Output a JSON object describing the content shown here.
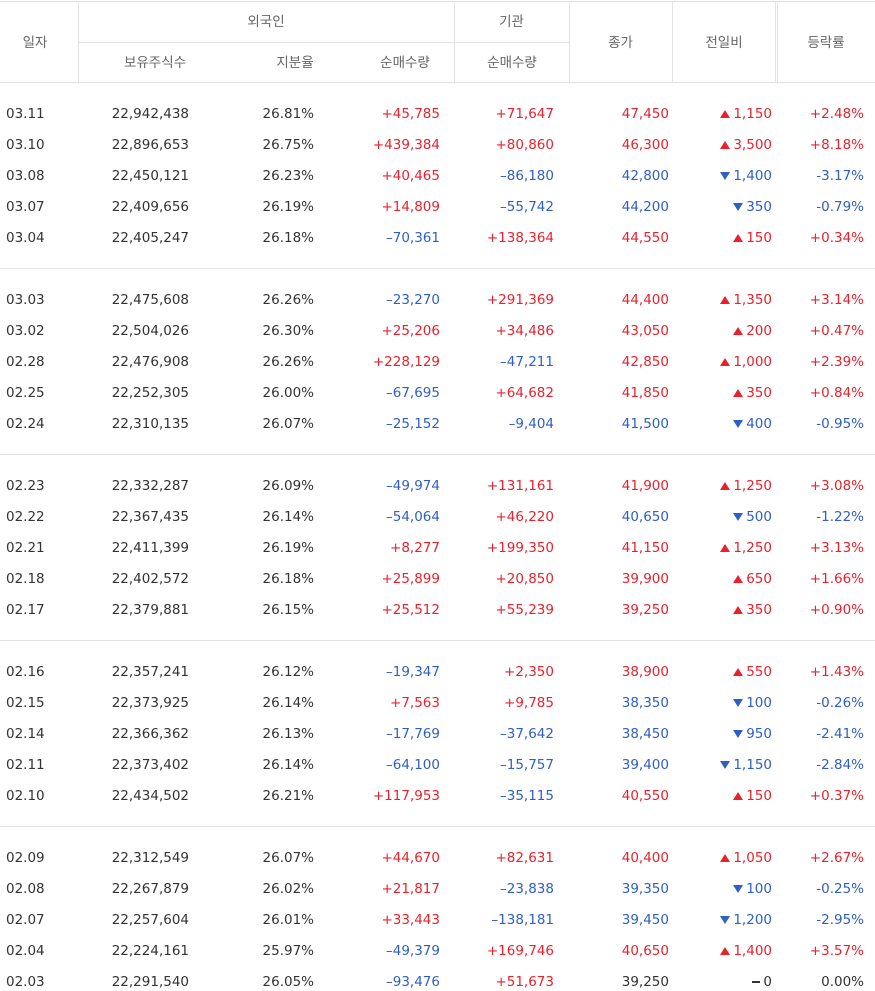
{
  "header": {
    "date": "일자",
    "foreign": "외국인",
    "institution": "기관",
    "close": "종가",
    "change": "전일비",
    "rate": "등락률",
    "foreign_shares": "보유주식수",
    "foreign_ratio": "지분율",
    "foreign_net": "순매수량",
    "institution_net": "순매수량"
  },
  "table": {
    "groups": [
      [
        [
          "03.11",
          "22,942,438",
          "26.81%",
          "+45,785",
          "+71,647",
          "47,450",
          "1,150",
          "+2.48%"
        ],
        [
          "03.10",
          "22,896,653",
          "26.75%",
          "+439,384",
          "+80,860",
          "46,300",
          "3,500",
          "+8.18%"
        ],
        [
          "03.08",
          "22,450,121",
          "26.23%",
          "+40,465",
          "–86,180",
          "42,800",
          "1,400",
          "-3.17%"
        ],
        [
          "03.07",
          "22,409,656",
          "26.19%",
          "+14,809",
          "–55,742",
          "44,200",
          "350",
          "-0.79%"
        ],
        [
          "03.04",
          "22,405,247",
          "26.18%",
          "–70,361",
          "+138,364",
          "44,550",
          "150",
          "+0.34%"
        ]
      ],
      [
        [
          "03.03",
          "22,475,608",
          "26.26%",
          "–23,270",
          "+291,369",
          "44,400",
          "1,350",
          "+3.14%"
        ],
        [
          "03.02",
          "22,504,026",
          "26.30%",
          "+25,206",
          "+34,486",
          "43,050",
          "200",
          "+0.47%"
        ],
        [
          "02.28",
          "22,476,908",
          "26.26%",
          "+228,129",
          "–47,211",
          "42,850",
          "1,000",
          "+2.39%"
        ],
        [
          "02.25",
          "22,252,305",
          "26.00%",
          "–67,695",
          "+64,682",
          "41,850",
          "350",
          "+0.84%"
        ],
        [
          "02.24",
          "22,310,135",
          "26.07%",
          "–25,152",
          "–9,404",
          "41,500",
          "400",
          "-0.95%"
        ]
      ],
      [
        [
          "02.23",
          "22,332,287",
          "26.09%",
          "–49,974",
          "+131,161",
          "41,900",
          "1,250",
          "+3.08%"
        ],
        [
          "02.22",
          "22,367,435",
          "26.14%",
          "–54,064",
          "+46,220",
          "40,650",
          "500",
          "-1.22%"
        ],
        [
          "02.21",
          "22,411,399",
          "26.19%",
          "+8,277",
          "+199,350",
          "41,150",
          "1,250",
          "+3.13%"
        ],
        [
          "02.18",
          "22,402,572",
          "26.18%",
          "+25,899",
          "+20,850",
          "39,900",
          "650",
          "+1.66%"
        ],
        [
          "02.17",
          "22,379,881",
          "26.15%",
          "+25,512",
          "+55,239",
          "39,250",
          "350",
          "+0.90%"
        ]
      ],
      [
        [
          "02.16",
          "22,357,241",
          "26.12%",
          "–19,347",
          "+2,350",
          "38,900",
          "550",
          "+1.43%"
        ],
        [
          "02.15",
          "22,373,925",
          "26.14%",
          "+7,563",
          "+9,785",
          "38,350",
          "100",
          "-0.26%"
        ],
        [
          "02.14",
          "22,366,362",
          "26.13%",
          "–17,769",
          "–37,642",
          "38,450",
          "950",
          "-2.41%"
        ],
        [
          "02.11",
          "22,373,402",
          "26.14%",
          "–64,100",
          "–15,757",
          "39,400",
          "1,150",
          "-2.84%"
        ],
        [
          "02.10",
          "22,434,502",
          "26.21%",
          "+117,953",
          "–35,115",
          "40,550",
          "150",
          "+0.37%"
        ]
      ],
      [
        [
          "02.09",
          "22,312,549",
          "26.07%",
          "+44,670",
          "+82,631",
          "40,400",
          "1,050",
          "+2.67%"
        ],
        [
          "02.08",
          "22,267,879",
          "26.02%",
          "+21,817",
          "–23,838",
          "39,350",
          "100",
          "-0.25%"
        ],
        [
          "02.07",
          "22,257,604",
          "26.01%",
          "+33,443",
          "–138,181",
          "39,450",
          "1,200",
          "-2.95%"
        ],
        [
          "02.04",
          "22,224,161",
          "25.97%",
          "–49,379",
          "+169,746",
          "40,650",
          "1,400",
          "+3.57%"
        ],
        [
          "02.03",
          "22,291,540",
          "26.05%",
          "–93,476",
          "+51,673",
          "39,250",
          "0",
          "0.00%"
        ]
      ]
    ]
  }
}
